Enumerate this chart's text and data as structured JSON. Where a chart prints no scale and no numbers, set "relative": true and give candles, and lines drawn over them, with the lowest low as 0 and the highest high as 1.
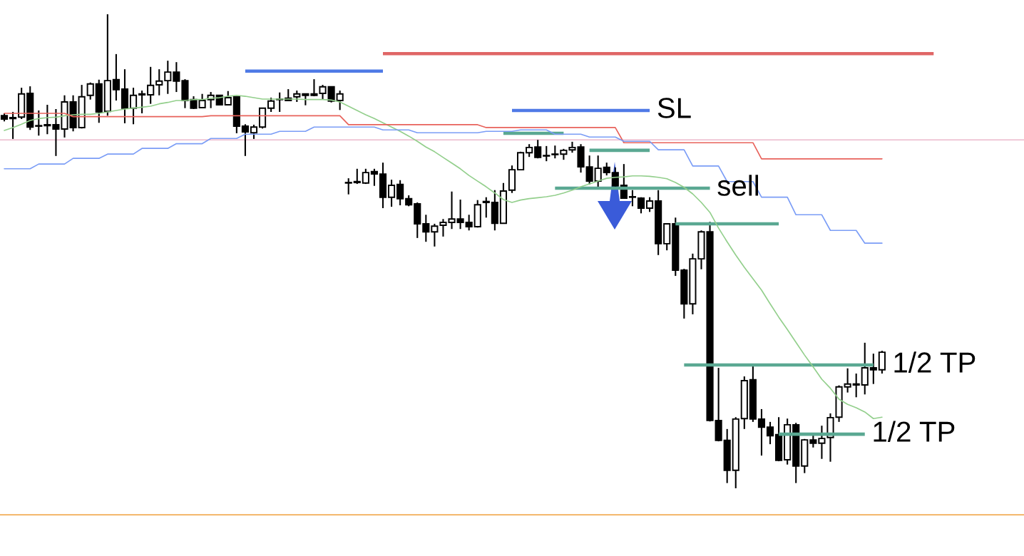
{
  "chart_data": {
    "type": "candlestick",
    "relative": true,
    "tick_labels": false,
    "categories": [
      null,
      null,
      null,
      null,
      null,
      null,
      null,
      null,
      null,
      null,
      null,
      null,
      null,
      null,
      null,
      null,
      null,
      null,
      null,
      null,
      null,
      null,
      null,
      null,
      null,
      null,
      null,
      null,
      null,
      null,
      null,
      null,
      null,
      null,
      null,
      null,
      null,
      null,
      null,
      null,
      null,
      null,
      null,
      null,
      null,
      null,
      null,
      null,
      null,
      null,
      null,
      null,
      null,
      null,
      null,
      null,
      null,
      null,
      null,
      null,
      null,
      null,
      null,
      null,
      null,
      null,
      null,
      null,
      null,
      null,
      null,
      null,
      null,
      null,
      null,
      null,
      null,
      null,
      null,
      null,
      null,
      null,
      null,
      null,
      null,
      null,
      null,
      null,
      null,
      null,
      null,
      null,
      null,
      null,
      null,
      null,
      null,
      null,
      null,
      null,
      null,
      null,
      null,
      null,
      null,
      null,
      null,
      null,
      null,
      null,
      null,
      null,
      null,
      null,
      null,
      null,
      null,
      null,
      null
    ],
    "ohlc": [
      [
        0.786,
        0.791,
        0.774,
        0.779
      ],
      [
        0.782,
        0.794,
        0.737,
        0.78
      ],
      [
        0.783,
        0.845,
        0.779,
        0.832
      ],
      [
        0.833,
        0.848,
        0.756,
        0.762
      ],
      [
        0.765,
        0.797,
        0.744,
        0.764
      ],
      [
        0.765,
        0.809,
        0.747,
        0.767
      ],
      [
        0.767,
        0.8,
        0.701,
        0.758
      ],
      [
        0.758,
        0.829,
        0.74,
        0.815
      ],
      [
        0.815,
        0.829,
        0.753,
        0.761
      ],
      [
        0.761,
        0.851,
        0.759,
        0.826
      ],
      [
        0.829,
        0.856,
        0.82,
        0.853
      ],
      [
        0.853,
        0.862,
        0.771,
        0.794
      ],
      [
        0.795,
        1.0,
        0.786,
        0.86
      ],
      [
        0.862,
        0.916,
        0.818,
        0.841
      ],
      [
        0.842,
        0.884,
        0.77,
        0.802
      ],
      [
        0.802,
        0.845,
        0.768,
        0.829
      ],
      [
        0.83,
        0.839,
        0.791,
        0.832
      ],
      [
        0.83,
        0.889,
        0.811,
        0.85
      ],
      [
        0.851,
        0.884,
        0.829,
        0.859
      ],
      [
        0.86,
        0.902,
        0.832,
        0.878
      ],
      [
        0.878,
        0.899,
        0.836,
        0.859
      ],
      [
        0.86,
        0.863,
        0.802,
        0.818
      ],
      [
        0.82,
        0.827,
        0.8,
        0.802
      ],
      [
        0.803,
        0.832,
        0.802,
        0.818
      ],
      [
        0.82,
        0.836,
        0.802,
        0.829
      ],
      [
        0.829,
        0.83,
        0.808,
        0.809
      ],
      [
        0.809,
        0.838,
        0.808,
        0.824
      ],
      [
        0.826,
        0.827,
        0.749,
        0.764
      ],
      [
        0.764,
        0.768,
        0.701,
        0.752
      ],
      [
        0.75,
        0.767,
        0.737,
        0.762
      ],
      [
        0.762,
        0.803,
        0.759,
        0.802
      ],
      [
        0.802,
        0.824,
        0.794,
        0.817
      ],
      [
        0.82,
        0.835,
        0.794,
        0.821
      ],
      [
        0.823,
        0.842,
        0.817,
        0.818
      ],
      [
        0.826,
        0.839,
        0.815,
        0.832
      ],
      [
        0.832,
        0.833,
        0.808,
        0.829
      ],
      [
        0.832,
        0.863,
        0.827,
        0.829
      ],
      [
        0.833,
        0.851,
        0.821,
        0.847
      ],
      [
        0.847,
        0.848,
        0.814,
        0.817
      ],
      [
        0.818,
        0.839,
        0.798,
        0.832
      ],
      [
        0.644,
        0.654,
        0.62,
        0.645
      ],
      [
        0.645,
        0.674,
        0.642,
        0.647
      ],
      [
        0.644,
        0.674,
        0.642,
        0.666
      ],
      [
        0.668,
        0.674,
        0.638,
        0.663
      ],
      [
        0.663,
        0.687,
        0.591,
        0.614
      ],
      [
        0.614,
        0.651,
        0.594,
        0.639
      ],
      [
        0.641,
        0.65,
        0.597,
        0.611
      ],
      [
        0.611,
        0.618,
        0.595,
        0.598
      ],
      [
        0.6,
        0.603,
        0.528,
        0.558
      ],
      [
        0.558,
        0.577,
        0.52,
        0.541
      ],
      [
        0.541,
        0.558,
        0.51,
        0.553
      ],
      [
        0.555,
        0.568,
        0.531,
        0.561
      ],
      [
        0.561,
        0.626,
        0.547,
        0.568
      ],
      [
        0.568,
        0.609,
        0.547,
        0.561
      ],
      [
        0.561,
        0.577,
        0.544,
        0.552
      ],
      [
        0.552,
        0.608,
        0.55,
        0.598
      ],
      [
        0.603,
        0.614,
        0.571,
        0.605
      ],
      [
        0.603,
        0.629,
        0.544,
        0.559
      ],
      [
        0.559,
        0.644,
        0.558,
        0.627
      ],
      [
        0.629,
        0.681,
        0.623,
        0.672
      ],
      [
        0.672,
        0.71,
        0.671,
        0.708
      ],
      [
        0.708,
        0.726,
        0.699,
        0.719
      ],
      [
        0.72,
        0.735,
        0.696,
        0.698
      ],
      [
        0.701,
        0.722,
        0.69,
        0.702
      ],
      [
        0.704,
        0.723,
        0.696,
        0.705
      ],
      [
        0.705,
        0.716,
        0.693,
        0.713
      ],
      [
        0.714,
        0.731,
        0.708,
        0.719
      ],
      [
        0.72,
        0.726,
        0.666,
        0.678
      ],
      [
        0.678,
        0.702,
        0.641,
        0.648
      ],
      [
        0.648,
        0.702,
        0.633,
        0.675
      ],
      [
        0.677,
        0.687,
        0.66,
        0.666
      ],
      [
        0.666,
        0.677,
        0.635,
        0.638
      ],
      [
        0.639,
        0.684,
        0.611,
        0.612
      ],
      [
        0.614,
        0.629,
        0.595,
        0.615
      ],
      [
        0.612,
        0.614,
        0.58,
        0.591
      ],
      [
        0.591,
        0.614,
        0.583,
        0.606
      ],
      [
        0.606,
        0.629,
        0.492,
        0.516
      ],
      [
        0.516,
        0.559,
        0.502,
        0.558
      ],
      [
        0.558,
        0.571,
        0.448,
        0.46
      ],
      [
        0.46,
        0.463,
        0.358,
        0.389
      ],
      [
        0.389,
        0.495,
        0.367,
        0.484
      ],
      [
        0.484,
        0.544,
        0.462,
        0.541
      ],
      [
        0.541,
        0.562,
        0.141,
        0.143
      ],
      [
        0.143,
        0.254,
        0.099,
        0.101
      ],
      [
        0.101,
        0.125,
        0.011,
        0.038
      ],
      [
        0.038,
        0.15,
        0.0,
        0.146
      ],
      [
        0.147,
        0.236,
        0.125,
        0.227
      ],
      [
        0.229,
        0.26,
        0.14,
        0.146
      ],
      [
        0.146,
        0.167,
        0.069,
        0.129
      ],
      [
        0.129,
        0.14,
        0.093,
        0.111
      ],
      [
        0.113,
        0.15,
        0.057,
        0.059
      ],
      [
        0.06,
        0.147,
        0.05,
        0.134
      ],
      [
        0.134,
        0.138,
        0.011,
        0.047
      ],
      [
        0.047,
        0.104,
        0.032,
        0.102
      ],
      [
        0.102,
        0.114,
        0.086,
        0.095
      ],
      [
        0.095,
        0.132,
        0.062,
        0.105
      ],
      [
        0.107,
        0.158,
        0.056,
        0.149
      ],
      [
        0.15,
        0.217,
        0.14,
        0.214
      ],
      [
        0.214,
        0.253,
        0.202,
        0.22
      ],
      [
        0.218,
        0.242,
        0.192,
        0.22
      ],
      [
        0.218,
        0.307,
        0.198,
        0.254
      ],
      [
        0.254,
        0.284,
        0.22,
        0.25
      ],
      [
        0.25,
        0.29,
        0.242,
        0.287
      ],
      null,
      null,
      null,
      null,
      null,
      null,
      null,
      null,
      null,
      null,
      null,
      null,
      null,
      null,
      null,
      null
    ],
    "series": [
      {
        "type": "line",
        "color": "#93cf8c",
        "values": [
          0.755,
          0.761,
          0.768,
          0.776,
          0.78,
          0.782,
          0.783,
          0.786,
          0.788,
          0.789,
          0.789,
          0.791,
          0.794,
          0.797,
          0.8,
          0.802,
          0.804,
          0.806,
          0.811,
          0.814,
          0.818,
          0.818,
          0.82,
          0.82,
          0.823,
          0.824,
          0.827,
          0.829,
          0.827,
          0.824,
          0.821,
          0.821,
          0.821,
          0.821,
          0.821,
          0.82,
          0.82,
          0.82,
          0.819,
          0.815,
          0.806,
          0.797,
          0.788,
          0.78,
          0.771,
          0.762,
          0.753,
          0.743,
          0.732,
          0.72,
          0.71,
          0.698,
          0.686,
          0.674,
          0.66,
          0.648,
          0.636,
          0.623,
          0.609,
          0.603,
          0.608,
          0.611,
          0.613,
          0.615,
          0.618,
          0.623,
          0.629,
          0.636,
          0.642,
          0.648,
          0.654,
          0.656,
          0.657,
          0.659,
          0.659,
          0.658,
          0.656,
          0.653,
          0.645,
          0.635,
          0.621,
          0.603,
          0.582,
          0.549,
          0.52,
          0.492,
          0.466,
          0.442,
          0.418,
          0.389,
          0.361,
          0.335,
          0.308,
          0.281,
          0.256,
          0.23,
          0.211,
          0.188,
          0.177,
          0.17,
          0.161,
          0.147,
          0.15,
          null,
          null,
          null,
          null,
          null,
          null,
          null,
          null,
          null,
          null,
          null,
          null,
          null,
          null,
          null,
          null
        ]
      },
      {
        "type": "line",
        "color": "#e8625b",
        "values": [
          0.791,
          0.791,
          0.791,
          0.791,
          0.791,
          0.791,
          0.791,
          0.791,
          0.784,
          0.784,
          0.784,
          0.784,
          0.784,
          0.784,
          0.784,
          0.784,
          0.784,
          0.784,
          0.784,
          0.784,
          0.784,
          0.784,
          0.784,
          0.784,
          0.786,
          0.786,
          0.786,
          0.786,
          0.786,
          0.786,
          0.786,
          0.786,
          0.786,
          0.786,
          0.786,
          0.786,
          0.786,
          0.786,
          0.786,
          0.786,
          0.767,
          0.767,
          0.767,
          0.767,
          0.767,
          0.767,
          0.767,
          0.767,
          0.767,
          0.767,
          0.767,
          0.767,
          0.767,
          0.767,
          0.767,
          0.767,
          0.761,
          0.761,
          0.761,
          0.761,
          0.761,
          0.761,
          0.761,
          0.761,
          0.761,
          0.761,
          0.761,
          0.761,
          0.761,
          0.761,
          0.761,
          0.761,
          0.729,
          0.729,
          0.729,
          0.729,
          0.729,
          0.729,
          0.729,
          0.729,
          0.729,
          0.729,
          0.729,
          0.729,
          0.729,
          0.729,
          0.729,
          0.729,
          0.695,
          0.695,
          0.695,
          0.695,
          0.695,
          0.695,
          0.695,
          0.695,
          0.695,
          0.695,
          0.695,
          0.695,
          0.695,
          0.695,
          0.695,
          null,
          null,
          null,
          null,
          null,
          null,
          null,
          null,
          null,
          null,
          null,
          null,
          null,
          null,
          null,
          null
        ]
      },
      {
        "type": "line",
        "color": "#7b9df6",
        "values": [
          0.674,
          0.674,
          0.674,
          0.674,
          0.684,
          0.684,
          0.684,
          0.684,
          0.696,
          0.696,
          0.696,
          0.696,
          0.705,
          0.705,
          0.705,
          0.705,
          0.717,
          0.717,
          0.717,
          0.717,
          0.727,
          0.727,
          0.727,
          0.727,
          0.738,
          0.738,
          0.738,
          0.738,
          0.747,
          0.747,
          0.747,
          0.747,
          0.753,
          0.753,
          0.753,
          0.753,
          0.762,
          0.762,
          0.762,
          0.762,
          0.762,
          0.762,
          0.762,
          0.762,
          0.756,
          0.756,
          0.756,
          0.756,
          0.75,
          0.75,
          0.75,
          0.75,
          0.75,
          0.75,
          0.75,
          0.75,
          0.753,
          0.753,
          0.753,
          0.753,
          0.756,
          0.756,
          0.756,
          0.756,
          0.747,
          0.747,
          0.747,
          0.747,
          0.741,
          0.741,
          0.741,
          0.741,
          0.732,
          0.732,
          0.732,
          0.732,
          0.714,
          0.714,
          0.714,
          0.714,
          0.68,
          0.68,
          0.68,
          0.68,
          0.647,
          0.647,
          0.647,
          0.647,
          0.614,
          0.614,
          0.614,
          0.614,
          0.577,
          0.577,
          0.577,
          0.577,
          0.544,
          0.544,
          0.544,
          0.544,
          0.517,
          0.517,
          0.517,
          null,
          null,
          null,
          null,
          null,
          null,
          null,
          null,
          null,
          null,
          null,
          null,
          null,
          null,
          null,
          null
        ]
      },
      {
        "type": "line",
        "color": "#4f7ae6",
        "values": [
          null,
          null,
          null,
          null,
          null,
          null,
          null,
          null,
          null,
          null,
          null,
          null,
          null,
          null,
          null,
          null,
          null,
          null,
          null,
          null,
          null,
          null,
          null,
          null,
          null,
          null,
          null,
          null,
          0.88,
          0.88,
          0.88,
          0.88,
          0.88,
          0.88,
          0.88,
          0.88,
          0.88,
          0.88,
          0.88,
          0.88,
          0.88,
          0.88,
          0.88,
          0.88,
          0.88,
          null,
          null,
          null,
          null,
          null,
          null,
          null,
          null,
          null,
          null,
          null,
          null,
          null,
          null,
          null,
          null,
          null,
          null,
          null,
          null,
          null,
          null,
          null,
          null,
          null,
          null,
          null,
          null,
          null,
          null,
          null,
          null,
          null,
          null,
          null,
          null,
          null,
          null,
          null,
          null,
          null,
          null,
          null,
          null,
          null,
          null,
          null,
          null,
          null,
          null,
          null,
          null,
          null,
          null,
          null,
          null,
          null,
          null,
          null,
          null,
          null,
          null,
          null,
          null,
          null,
          null,
          null,
          null,
          null,
          null,
          null,
          null,
          null,
          null
        ]
      },
      {
        "type": "line",
        "color": "#e06666",
        "values": [
          null,
          null,
          null,
          null,
          null,
          null,
          null,
          null,
          null,
          null,
          null,
          null,
          null,
          null,
          null,
          null,
          null,
          null,
          null,
          null,
          null,
          null,
          null,
          null,
          null,
          null,
          null,
          null,
          null,
          null,
          null,
          null,
          null,
          null,
          null,
          null,
          null,
          null,
          null,
          null,
          null,
          null,
          null,
          null,
          0.917,
          0.917,
          0.917,
          0.917,
          0.917,
          0.917,
          0.917,
          0.917,
          0.917,
          0.917,
          0.917,
          0.917,
          0.917,
          0.917,
          0.917,
          0.917,
          0.917,
          0.917,
          0.917,
          0.917,
          0.917,
          0.917,
          0.917,
          0.917,
          0.917,
          0.917,
          0.917,
          0.917,
          0.917,
          0.917,
          0.917,
          0.917,
          0.917,
          0.917,
          0.917,
          0.917,
          0.917,
          0.917,
          0.917,
          0.917,
          0.917,
          0.917,
          0.917,
          0.917,
          0.917,
          0.917,
          0.917,
          0.917,
          0.917,
          0.917,
          0.917,
          0.917,
          0.917,
          0.917,
          0.917,
          0.917,
          0.917,
          0.917,
          0.917,
          0.917,
          0.917,
          0.917,
          0.917,
          0.917,
          0.917,
          null,
          null,
          null,
          null,
          null,
          null,
          null,
          null,
          null,
          null
        ]
      },
      {
        "type": "line",
        "name": "SL",
        "color": "#4f7ae6",
        "values": [
          null,
          null,
          null,
          null,
          null,
          null,
          null,
          null,
          null,
          null,
          null,
          null,
          null,
          null,
          null,
          null,
          null,
          null,
          null,
          null,
          null,
          null,
          null,
          null,
          null,
          null,
          null,
          null,
          null,
          null,
          null,
          null,
          null,
          null,
          null,
          null,
          null,
          null,
          null,
          null,
          null,
          null,
          null,
          null,
          null,
          null,
          null,
          null,
          null,
          null,
          null,
          null,
          null,
          null,
          null,
          null,
          null,
          null,
          null,
          0.797,
          0.797,
          0.797,
          0.797,
          0.797,
          0.797,
          0.797,
          0.797,
          0.797,
          0.797,
          0.797,
          0.797,
          0.797,
          0.797,
          0.797,
          0.797,
          0.797,
          null,
          null,
          null,
          null,
          null,
          null,
          null,
          null,
          null,
          null,
          null,
          null,
          null,
          null,
          null,
          null,
          null,
          null,
          null,
          null,
          null,
          null,
          null,
          null,
          null,
          null,
          null,
          null,
          null,
          null,
          null,
          null,
          null,
          null,
          null,
          null,
          null,
          null,
          null,
          null,
          null,
          null,
          null
        ]
      },
      {
        "type": "line",
        "color": "#5aa892",
        "values": [
          null,
          null,
          null,
          null,
          null,
          null,
          null,
          null,
          null,
          null,
          null,
          null,
          null,
          null,
          null,
          null,
          null,
          null,
          null,
          null,
          null,
          null,
          null,
          null,
          null,
          null,
          null,
          null,
          null,
          null,
          null,
          null,
          null,
          null,
          null,
          null,
          null,
          null,
          null,
          null,
          null,
          null,
          null,
          null,
          null,
          null,
          null,
          null,
          null,
          null,
          null,
          null,
          null,
          null,
          null,
          null,
          null,
          null,
          0.749,
          0.749,
          0.749,
          0.749,
          0.749,
          0.749,
          0.749,
          0.749,
          null,
          null,
          null,
          null,
          null,
          null,
          null,
          null,
          null,
          null,
          null,
          null,
          null,
          null,
          null,
          null,
          null,
          null,
          null,
          null,
          null,
          null,
          null,
          null,
          null,
          null,
          null,
          null,
          null,
          null,
          null,
          null,
          null,
          null,
          null,
          null,
          null,
          null,
          null,
          null,
          null,
          null,
          null,
          null,
          null,
          null,
          null,
          null,
          null,
          null,
          null,
          null,
          null
        ]
      },
      {
        "type": "line",
        "color": "#5aa892",
        "values": [
          null,
          null,
          null,
          null,
          null,
          null,
          null,
          null,
          null,
          null,
          null,
          null,
          null,
          null,
          null,
          null,
          null,
          null,
          null,
          null,
          null,
          null,
          null,
          null,
          null,
          null,
          null,
          null,
          null,
          null,
          null,
          null,
          null,
          null,
          null,
          null,
          null,
          null,
          null,
          null,
          null,
          null,
          null,
          null,
          null,
          null,
          null,
          null,
          null,
          null,
          null,
          null,
          null,
          null,
          null,
          null,
          null,
          null,
          null,
          null,
          null,
          null,
          null,
          null,
          null,
          null,
          null,
          null,
          0.713,
          0.713,
          0.713,
          0.713,
          0.713,
          0.713,
          0.713,
          0.713,
          null,
          null,
          null,
          null,
          null,
          null,
          null,
          null,
          null,
          null,
          null,
          null,
          null,
          null,
          null,
          null,
          null,
          null,
          null,
          null,
          null,
          null,
          null,
          null,
          null,
          null,
          null,
          null,
          null,
          null,
          null,
          null,
          null,
          null,
          null,
          null,
          null,
          null,
          null,
          null,
          null,
          null,
          null
        ]
      },
      {
        "type": "line",
        "name": "sell",
        "color": "#5aa892",
        "values": [
          null,
          null,
          null,
          null,
          null,
          null,
          null,
          null,
          null,
          null,
          null,
          null,
          null,
          null,
          null,
          null,
          null,
          null,
          null,
          null,
          null,
          null,
          null,
          null,
          null,
          null,
          null,
          null,
          null,
          null,
          null,
          null,
          null,
          null,
          null,
          null,
          null,
          null,
          null,
          null,
          null,
          null,
          null,
          null,
          null,
          null,
          null,
          null,
          null,
          null,
          null,
          null,
          null,
          null,
          null,
          null,
          null,
          null,
          null,
          null,
          null,
          null,
          null,
          null,
          0.633,
          0.633,
          0.633,
          0.633,
          0.633,
          0.633,
          0.633,
          0.633,
          0.633,
          0.633,
          0.633,
          0.633,
          0.633,
          0.633,
          0.633,
          0.633,
          0.633,
          0.633,
          0.633,
          null,
          null,
          null,
          null,
          null,
          null,
          null,
          null,
          null,
          null,
          null,
          null,
          null,
          null,
          null,
          null,
          null,
          null,
          null,
          null,
          null,
          null,
          null,
          null,
          null,
          null,
          null,
          null,
          null,
          null,
          null,
          null,
          null,
          null,
          null,
          null
        ]
      },
      {
        "type": "line",
        "color": "#5aa892",
        "values": [
          null,
          null,
          null,
          null,
          null,
          null,
          null,
          null,
          null,
          null,
          null,
          null,
          null,
          null,
          null,
          null,
          null,
          null,
          null,
          null,
          null,
          null,
          null,
          null,
          null,
          null,
          null,
          null,
          null,
          null,
          null,
          null,
          null,
          null,
          null,
          null,
          null,
          null,
          null,
          null,
          null,
          null,
          null,
          null,
          null,
          null,
          null,
          null,
          null,
          null,
          null,
          null,
          null,
          null,
          null,
          null,
          null,
          null,
          null,
          null,
          null,
          null,
          null,
          null,
          null,
          null,
          null,
          null,
          null,
          null,
          null,
          null,
          null,
          null,
          null,
          null,
          null,
          null,
          0.558,
          0.558,
          0.558,
          0.558,
          0.558,
          0.558,
          0.558,
          0.558,
          0.558,
          0.558,
          0.558,
          0.558,
          0.558,
          null,
          null,
          null,
          null,
          null,
          null,
          null,
          null,
          null,
          null,
          null,
          null,
          null,
          null,
          null,
          null,
          null,
          null,
          null,
          null,
          null,
          null,
          null,
          null,
          null,
          null,
          null,
          null
        ]
      },
      {
        "type": "line",
        "name": "1/2 TP",
        "color": "#5aa892",
        "values": [
          null,
          null,
          null,
          null,
          null,
          null,
          null,
          null,
          null,
          null,
          null,
          null,
          null,
          null,
          null,
          null,
          null,
          null,
          null,
          null,
          null,
          null,
          null,
          null,
          null,
          null,
          null,
          null,
          null,
          null,
          null,
          null,
          null,
          null,
          null,
          null,
          null,
          null,
          null,
          null,
          null,
          null,
          null,
          null,
          null,
          null,
          null,
          null,
          null,
          null,
          null,
          null,
          null,
          null,
          null,
          null,
          null,
          null,
          null,
          null,
          null,
          null,
          null,
          null,
          null,
          null,
          null,
          null,
          null,
          null,
          null,
          null,
          null,
          null,
          null,
          null,
          null,
          null,
          null,
          0.26,
          0.26,
          0.26,
          0.26,
          0.26,
          0.26,
          0.26,
          0.26,
          0.26,
          0.26,
          0.26,
          0.26,
          0.26,
          0.26,
          0.26,
          0.26,
          0.26,
          0.26,
          0.26,
          0.26,
          0.26,
          0.26,
          0.26,
          null,
          null,
          null,
          null,
          null,
          null,
          null,
          null,
          null,
          null,
          null,
          null,
          null,
          null,
          null,
          null,
          null
        ]
      },
      {
        "type": "line",
        "name": "1/2 TP",
        "color": "#5aa892",
        "values": [
          null,
          null,
          null,
          null,
          null,
          null,
          null,
          null,
          null,
          null,
          null,
          null,
          null,
          null,
          null,
          null,
          null,
          null,
          null,
          null,
          null,
          null,
          null,
          null,
          null,
          null,
          null,
          null,
          null,
          null,
          null,
          null,
          null,
          null,
          null,
          null,
          null,
          null,
          null,
          null,
          null,
          null,
          null,
          null,
          null,
          null,
          null,
          null,
          null,
          null,
          null,
          null,
          null,
          null,
          null,
          null,
          null,
          null,
          null,
          null,
          null,
          null,
          null,
          null,
          null,
          null,
          null,
          null,
          null,
          null,
          null,
          null,
          null,
          null,
          null,
          null,
          null,
          null,
          null,
          null,
          null,
          null,
          null,
          null,
          null,
          null,
          null,
          null,
          null,
          null,
          0.114,
          0.114,
          0.114,
          0.114,
          0.114,
          0.114,
          0.114,
          0.114,
          0.114,
          0.114,
          0.114,
          null,
          null,
          null,
          null,
          null,
          null,
          null,
          null,
          null,
          null,
          null,
          null,
          null,
          null,
          null,
          null,
          null,
          null
        ]
      }
    ],
    "ref_lines": [
      {
        "axis": "y",
        "value": 0.735,
        "color": "#ecb8cc"
      },
      {
        "axis": "y",
        "value": -0.056,
        "color": "#f0a03c"
      }
    ]
  }
}
